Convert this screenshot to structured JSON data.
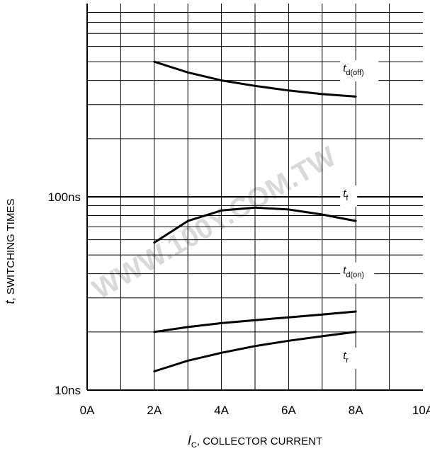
{
  "watermark": "WWW.100Y.COM.TW",
  "chart_data": {
    "type": "line",
    "xlabel": {
      "symbol": "I",
      "subscript": "C",
      "text": ", COLLECTOR CURRENT"
    },
    "ylabel": {
      "symbol": "t",
      "text": ", SWITCHING TIMES"
    },
    "x_scale": "linear",
    "y_scale": "log",
    "xlim": [
      0,
      10
    ],
    "ylim": [
      10,
      1000
    ],
    "grid": true,
    "x_ticks": [
      {
        "value": 0,
        "label": "0A"
      },
      {
        "value": 2,
        "label": "2A"
      },
      {
        "value": 4,
        "label": "4A"
      },
      {
        "value": 6,
        "label": "6A"
      },
      {
        "value": 8,
        "label": "8A"
      },
      {
        "value": 10,
        "label": "10A"
      }
    ],
    "y_ticks": [
      {
        "value": 10,
        "label": "10ns"
      },
      {
        "value": 100,
        "label": "100ns"
      }
    ],
    "series": [
      {
        "symbol": "t",
        "subscript": "d(off)",
        "label_at": [
          8,
          445
        ],
        "points": [
          [
            2,
            500
          ],
          [
            3,
            440
          ],
          [
            4,
            400
          ],
          [
            5,
            375
          ],
          [
            6,
            355
          ],
          [
            7,
            340
          ],
          [
            8,
            330
          ]
        ]
      },
      {
        "symbol": "t",
        "subscript": "f",
        "label_at": [
          8,
          100
        ],
        "points": [
          [
            2,
            58
          ],
          [
            3,
            75
          ],
          [
            4,
            85
          ],
          [
            5,
            88
          ],
          [
            6,
            86
          ],
          [
            7,
            81
          ],
          [
            8,
            75
          ]
        ]
      },
      {
        "symbol": "t",
        "subscript": "d(on)",
        "label_at": [
          8,
          40
        ],
        "points": [
          [
            2,
            20
          ],
          [
            3,
            21.2
          ],
          [
            4,
            22.2
          ],
          [
            5,
            23.0
          ],
          [
            6,
            23.8
          ],
          [
            7,
            24.6
          ],
          [
            8,
            25.5
          ]
        ]
      },
      {
        "symbol": "t",
        "subscript": "r",
        "label_at": [
          8,
          14.5
        ],
        "points": [
          [
            2,
            12.5
          ],
          [
            3,
            14.2
          ],
          [
            4,
            15.6
          ],
          [
            5,
            16.9
          ],
          [
            6,
            18.0
          ],
          [
            7,
            19.0
          ],
          [
            8,
            20.0
          ]
        ]
      }
    ]
  }
}
